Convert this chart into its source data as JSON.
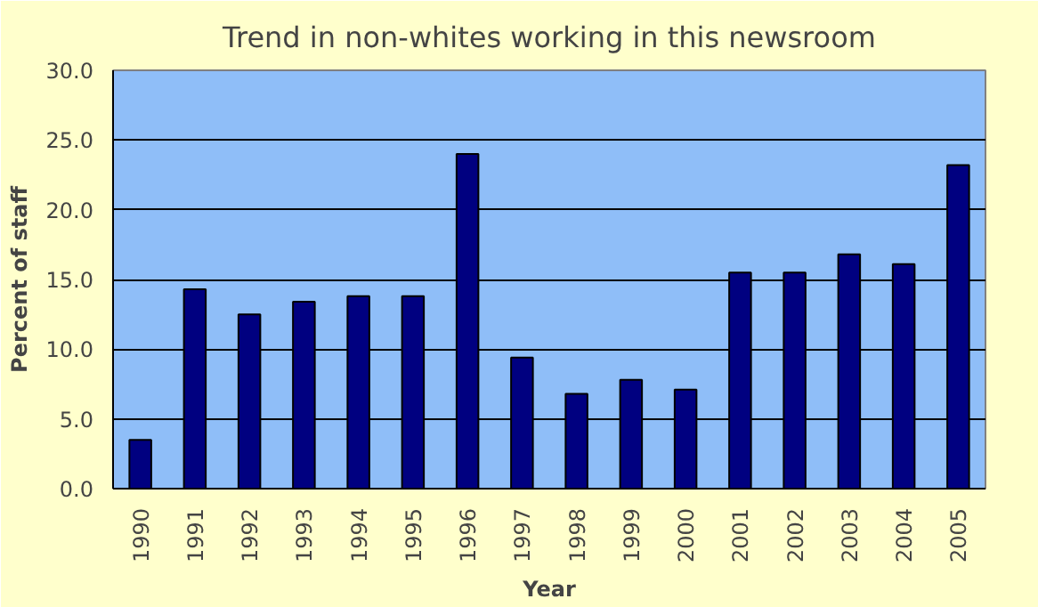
{
  "chart_data": {
    "type": "bar",
    "title": "Trend in non-whites working in this newsroom",
    "xlabel": "Year",
    "ylabel": "Percent of staff",
    "categories": [
      "1990",
      "1991",
      "1992",
      "1993",
      "1994",
      "1995",
      "1996",
      "1997",
      "1998",
      "1999",
      "2000",
      "2001",
      "2002",
      "2003",
      "2004",
      "2005"
    ],
    "values": [
      3.5,
      14.3,
      12.5,
      13.4,
      13.8,
      13.8,
      24.0,
      9.4,
      6.8,
      7.8,
      7.1,
      15.5,
      15.5,
      16.8,
      16.1,
      23.2
    ],
    "color": "#000080",
    "ylim": [
      0,
      30
    ],
    "yticks": [
      {
        "value": 0,
        "label": "0.0"
      },
      {
        "value": 5,
        "label": "5.0"
      },
      {
        "value": 10,
        "label": "10.0"
      },
      {
        "value": 15,
        "label": "15.0"
      },
      {
        "value": 20,
        "label": "20.0"
      },
      {
        "value": 25,
        "label": "25.0"
      },
      {
        "value": 30,
        "label": "30.0"
      }
    ],
    "grid": "y"
  }
}
